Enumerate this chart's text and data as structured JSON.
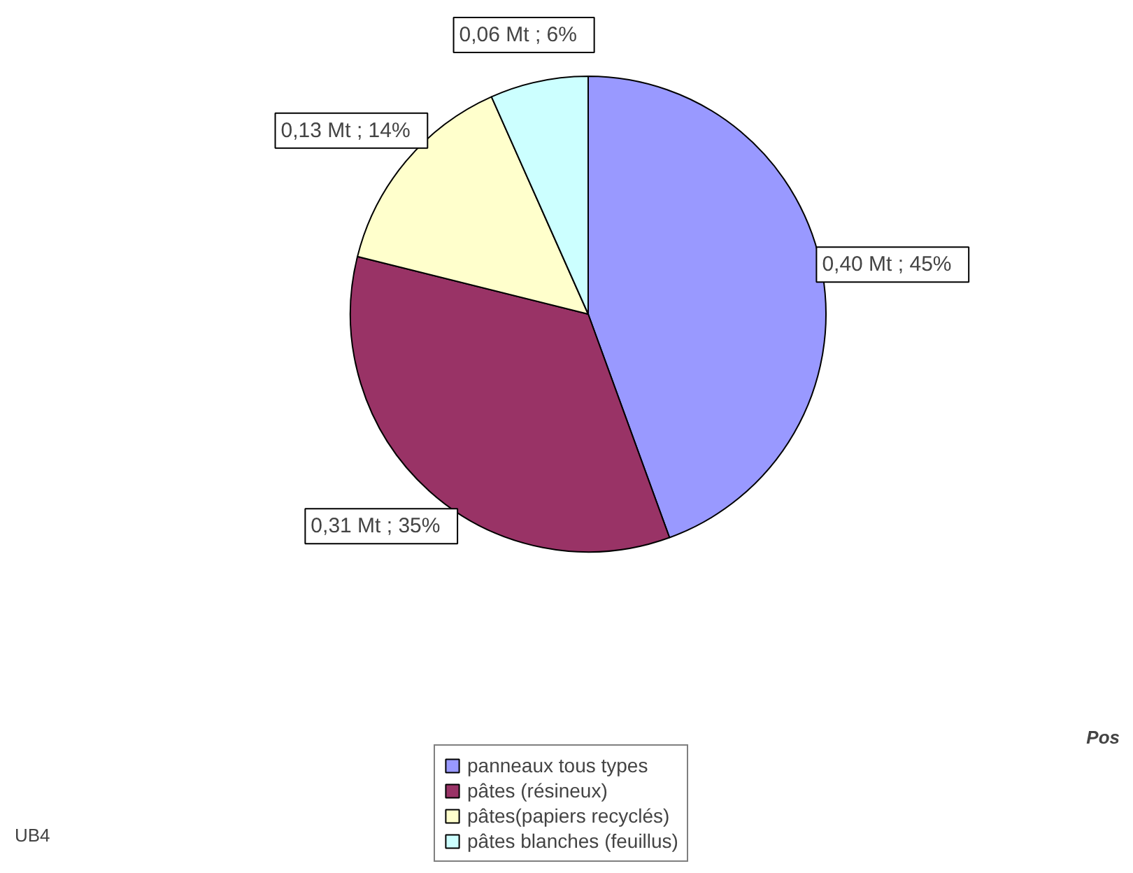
{
  "chart_data": {
    "type": "pie",
    "categories": [
      "panneaux tous types",
      "pâtes (résineux)",
      "pâtes(papiers recyclés)",
      "pâtes blanches (feuillus)"
    ],
    "values": [
      0.4,
      0.31,
      0.13,
      0.06
    ],
    "colors": [
      "#9999ff",
      "#993366",
      "#ffffcc",
      "#ccffff"
    ],
    "value_labels": [
      "0,40  Mt  ; 45%",
      "0,31  Mt  ; 35%",
      "0,13  Mt  ; 14%",
      "0,06  Mt  ; 6%"
    ],
    "legend": "bottom",
    "annotations": [
      "UB4",
      "Pos"
    ]
  }
}
